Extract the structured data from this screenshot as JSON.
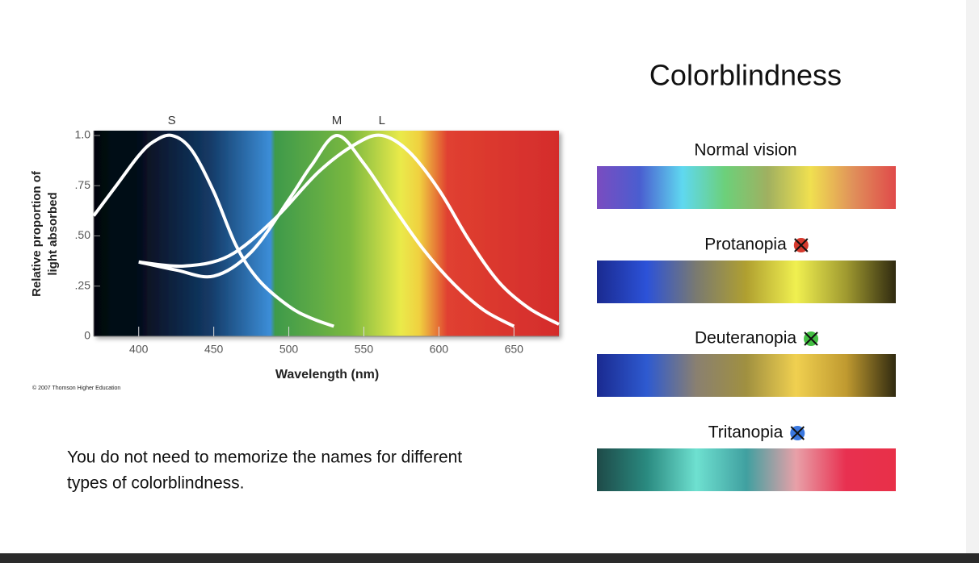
{
  "chart_data": {
    "type": "line",
    "y_label": [
      "Relative proportion of",
      "light absorbed"
    ],
    "x_label": "Wavelength (nm)",
    "credit": "© 2007 Thomson Higher Education",
    "xlim": [
      370,
      680
    ],
    "ylim": [
      0,
      1
    ],
    "xticks": [
      400,
      450,
      500,
      550,
      600,
      650
    ],
    "yticks": [
      0,
      {
        "value": 0.25,
        "label": ".25"
      },
      {
        "value": 0.5,
        "label": ".50"
      },
      {
        "value": 0.75,
        "label": ".75"
      },
      {
        "value": 1,
        "label": "1.0"
      }
    ],
    "series": [
      {
        "name": "S",
        "color": "#ffffff",
        "x": [
          370,
          385,
          400,
          410,
          422,
          435,
          450,
          465,
          480,
          500,
          515,
          530
        ],
        "values": [
          0.6,
          0.75,
          0.9,
          0.97,
          1.0,
          0.93,
          0.72,
          0.45,
          0.28,
          0.15,
          0.09,
          0.05
        ]
      },
      {
        "name": "M",
        "color": "#ffffff",
        "x": [
          400,
          425,
          450,
          475,
          500,
          515,
          532,
          550,
          570,
          590,
          610,
          630,
          650
        ],
        "values": [
          0.37,
          0.33,
          0.3,
          0.42,
          0.68,
          0.85,
          1.0,
          0.86,
          0.64,
          0.43,
          0.26,
          0.13,
          0.05
        ]
      },
      {
        "name": "L",
        "color": "#ffffff",
        "x": [
          400,
          430,
          460,
          490,
          520,
          545,
          562,
          580,
          600,
          620,
          640,
          660,
          680
        ],
        "values": [
          0.37,
          0.35,
          0.4,
          0.58,
          0.82,
          0.96,
          1.0,
          0.92,
          0.73,
          0.48,
          0.27,
          0.14,
          0.06
        ]
      }
    ]
  },
  "title": "Colorblindness",
  "strips": [
    {
      "label": "Normal vision",
      "colors": [
        "#7a4cc0",
        "#4a5ed0",
        "#5fd8f0",
        "#6cd07a",
        "#a0b060",
        "#f0e050",
        "#e0905a",
        "#e04a4a"
      ]
    },
    {
      "label": "Protanopia",
      "icon_color": "#d63a2e",
      "colors": [
        "#1a2a90",
        "#2c52d8",
        "#7a7a70",
        "#b0a030",
        "#f0f050",
        "#a09a30",
        "#302a10"
      ]
    },
    {
      "label": "Deuteranopia",
      "icon_color": "#44c044",
      "colors": [
        "#1a2a90",
        "#2e5ad0",
        "#8a8070",
        "#a09040",
        "#f0d050",
        "#c09a30",
        "#302a10"
      ]
    },
    {
      "label": "Tritanopia",
      "icon_color": "#3a78e0",
      "colors": [
        "#1e4a48",
        "#2a8a80",
        "#6ee0d0",
        "#40a0a0",
        "#e8a0a8",
        "#e83050",
        "#e83048"
      ]
    }
  ],
  "note": [
    "You do not need to memorize the names for different",
    "types of colorblindness."
  ]
}
